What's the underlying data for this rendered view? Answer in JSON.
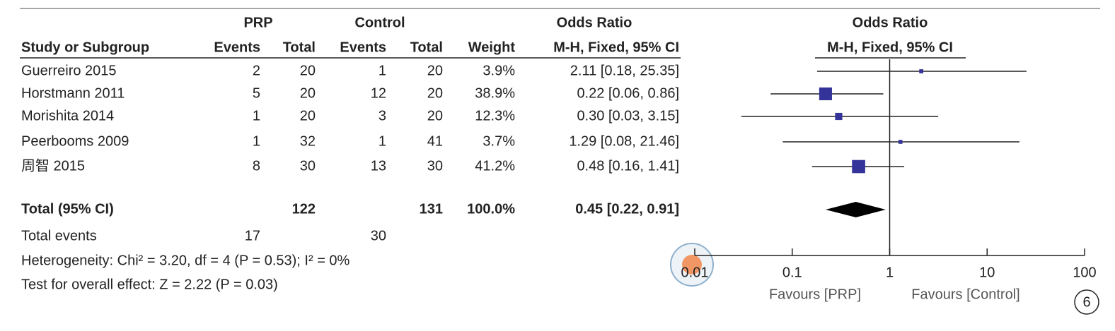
{
  "chart_data": {
    "type": "forest",
    "header": {
      "group1": "PRP",
      "group2": "Control",
      "effect": "Odds Ratio",
      "study": "Study or Subgroup",
      "events": "Events",
      "total": "Total",
      "weight": "Weight",
      "method": "M-H, Fixed, 95% CI"
    },
    "categories": [
      "Guerreiro 2015",
      "Horstmann 2011",
      "Morishita 2014",
      "Peerbooms 2009",
      "周智 2015"
    ],
    "events_1": [
      2,
      5,
      1,
      1,
      8
    ],
    "total_1": [
      20,
      20,
      20,
      32,
      30
    ],
    "events_2": [
      1,
      12,
      3,
      1,
      13
    ],
    "total_2": [
      20,
      20,
      20,
      41,
      30
    ],
    "weights": [
      3.9,
      38.9,
      12.3,
      3.7,
      41.2
    ],
    "weight_labels": [
      "3.9%",
      "38.9%",
      "12.3%",
      "3.7%",
      "41.2%"
    ],
    "values": [
      2.11,
      0.22,
      0.3,
      1.29,
      0.48
    ],
    "ci_low": [
      0.18,
      0.06,
      0.03,
      0.08,
      0.16
    ],
    "ci_high": [
      25.35,
      0.86,
      3.15,
      21.46,
      1.41
    ],
    "value_labels": [
      "2.11 [0.18, 25.35]",
      "0.22 [0.06, 0.86]",
      "0.30 [0.03, 3.15]",
      "1.29 [0.08, 21.46]",
      "0.48 [0.16, 1.41]"
    ],
    "total": {
      "label": "Total (95% CI)",
      "total_1": 122,
      "total_2": 131,
      "weight": 100,
      "weight_label": "100.0%",
      "value": 0.45,
      "ci_low": 0.22,
      "ci_high": 0.91,
      "value_label": "0.45 [0.22, 0.91]"
    },
    "total_events": {
      "label": "Total events",
      "events_1": 17,
      "events_2": 30
    },
    "heterogeneity": "Heterogeneity: Chi² = 3.20, df = 4 (P = 0.53); I² = 0%",
    "overall_effect": "Test for overall effect: Z = 2.22 (P = 0.03)",
    "xlim": [
      0.01,
      100
    ],
    "xticks": [
      0.01,
      0.1,
      1,
      10,
      100
    ],
    "log_x": true,
    "xlabel_left": "Favours [PRP]",
    "xlabel_right": "Favours [Control]",
    "annotation": "6",
    "color": "#333399"
  }
}
